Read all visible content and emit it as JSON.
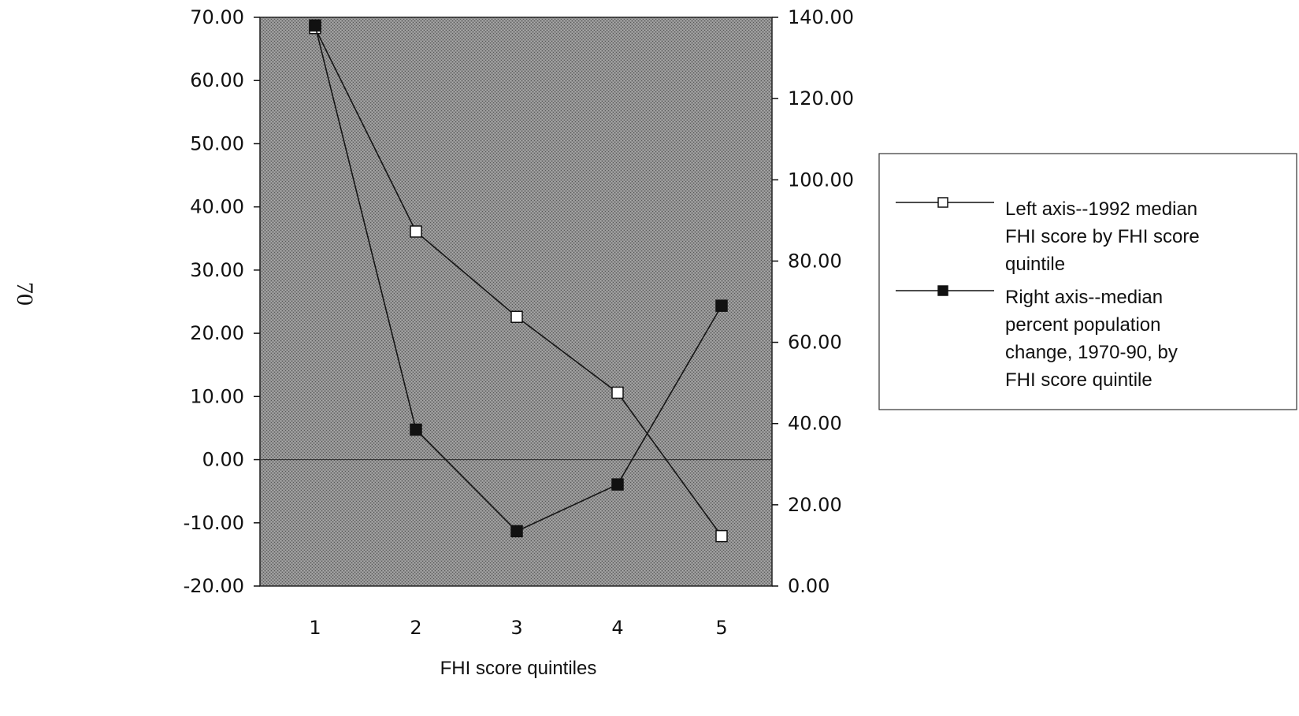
{
  "page_number": "70",
  "chart_data": {
    "type": "line",
    "categories": [
      "1",
      "2",
      "3",
      "4",
      "5"
    ],
    "xlabel": "FHI score quintiles",
    "left_axis": {
      "ylim": [
        -20,
        70
      ],
      "ticks": [
        "70.00",
        "60.00",
        "50.00",
        "40.00",
        "30.00",
        "20.00",
        "10.00",
        "0.00",
        "-10.00",
        "-20.00"
      ],
      "tick_values": [
        70,
        60,
        50,
        40,
        30,
        20,
        10,
        0,
        -10,
        -20
      ]
    },
    "right_axis": {
      "ylim": [
        0,
        140
      ],
      "ticks": [
        "140.00",
        "120.00",
        "100.00",
        "80.00",
        "60.00",
        "40.00",
        "20.00",
        "0.00"
      ],
      "tick_values": [
        140,
        120,
        100,
        80,
        60,
        40,
        20,
        0
      ]
    },
    "series": [
      {
        "name": "Left axis--1992 median FHI score by FHI score quintile",
        "axis": "left",
        "marker": "open-square",
        "values": [
          68.3,
          36.1,
          22.6,
          10.6,
          -12.1
        ]
      },
      {
        "name": "Right axis--median percent population change, 1970-90, by FHI score quintile",
        "axis": "right",
        "marker": "filled-square",
        "values": [
          138,
          38.5,
          13.5,
          25,
          69
        ]
      }
    ],
    "zero_line": true,
    "plot_background": "#8a8a8a",
    "legend_position": "right"
  },
  "legend": {
    "items": [
      {
        "marker": "open-square",
        "lines": [
          "Left axis--1992 median",
          "FHI score by FHI score",
          "quintile"
        ]
      },
      {
        "marker": "filled-square",
        "lines": [
          "Right axis--median",
          "percent population",
          "change, 1970-90, by",
          "FHI score quintile"
        ]
      }
    ]
  }
}
